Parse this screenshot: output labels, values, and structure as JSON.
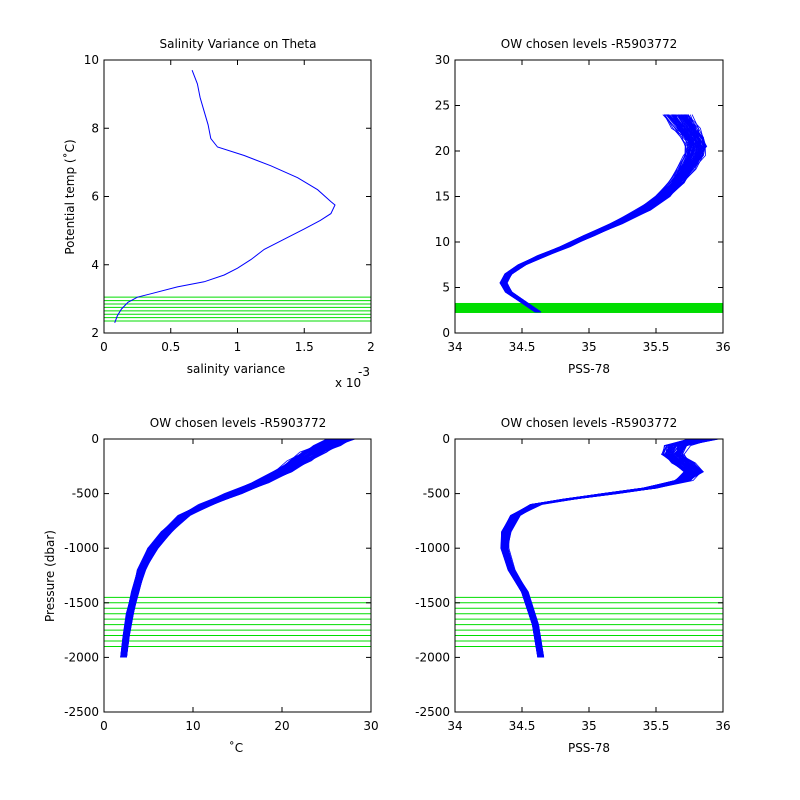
{
  "colors": {
    "profile": "#0000ff",
    "levels": "#00dd00",
    "axes": "#000000",
    "background": "#ffffff"
  },
  "chart_data": [
    {
      "type": "line",
      "title": "Salinity Variance on Theta",
      "xlabel": "salinity variance",
      "ylabel": "Potential temp (˚C)",
      "x_exponent_label": "x 10",
      "x_exponent_power": "-3",
      "xlim": [
        0,
        2
      ],
      "ylim": [
        2,
        10
      ],
      "xticks": [
        "0",
        "0.5",
        "1",
        "1.5",
        "2"
      ],
      "yticks": [
        "2",
        "4",
        "6",
        "8",
        "10"
      ],
      "series": [
        {
          "x": [
            0.08,
            0.1,
            0.13,
            0.18,
            0.25,
            0.35,
            0.55,
            0.75,
            0.9,
            1.0,
            1.1,
            1.2,
            1.35,
            1.5,
            1.62,
            1.7,
            1.73,
            1.7,
            1.6,
            1.45,
            1.25,
            1.05,
            0.85,
            0.8,
            0.78,
            0.75,
            0.72,
            0.7,
            0.66
          ],
          "y": [
            2.3,
            2.5,
            2.7,
            2.9,
            3.05,
            3.15,
            3.35,
            3.5,
            3.7,
            3.9,
            4.15,
            4.45,
            4.75,
            5.05,
            5.3,
            5.5,
            5.75,
            5.85,
            6.2,
            6.55,
            6.9,
            7.2,
            7.45,
            7.7,
            8.1,
            8.5,
            8.9,
            9.3,
            9.7
          ]
        }
      ],
      "hlines": [
        2.35,
        2.45,
        2.55,
        2.65,
        2.75,
        2.85,
        2.95,
        3.05
      ]
    },
    {
      "type": "line",
      "title": "OW chosen levels -R5903772",
      "xlabel": "PSS-78",
      "ylabel": "",
      "xlim": [
        34,
        36
      ],
      "ylim": [
        0,
        30
      ],
      "xticks": [
        "34",
        "34.5",
        "35",
        "35.5",
        "36"
      ],
      "yticks": [
        "0",
        "5",
        "10",
        "15",
        "20",
        "25",
        "30"
      ],
      "mean_profile": {
        "x": [
          34.62,
          34.5,
          34.4,
          34.36,
          34.4,
          34.5,
          34.65,
          34.82,
          35.0,
          35.2,
          35.4,
          35.55,
          35.65,
          35.72,
          35.78,
          35.8,
          35.77,
          35.72,
          35.65
        ],
        "y": [
          2.3,
          3.5,
          4.5,
          5.5,
          6.5,
          7.5,
          8.5,
          9.5,
          10.7,
          12.0,
          13.5,
          15.0,
          16.5,
          18.0,
          19.5,
          20.5,
          21.5,
          22.5,
          24.0
        ]
      },
      "profile_count": 80,
      "level_band": [
        2.2,
        3.3
      ]
    },
    {
      "type": "line",
      "title": "OW chosen levels -R5903772",
      "xlabel": "˚C",
      "ylabel": "Pressure (dbar)",
      "xlim": [
        0,
        30
      ],
      "ylim": [
        -2500,
        0
      ],
      "xticks": [
        "0",
        "10",
        "20",
        "30"
      ],
      "yticks": [
        "-2500",
        "-2000",
        "-1500",
        "-1000",
        "-500",
        "0"
      ],
      "mean_profile": {
        "x": [
          2.2,
          2.5,
          2.9,
          3.5,
          4.2,
          5.5,
          7.0,
          9.0,
          11.5,
          14.5,
          17.5,
          20.0,
          22.0,
          23.5,
          25.0,
          26.5
        ],
        "y": [
          -2000,
          -1800,
          -1600,
          -1400,
          -1200,
          -1000,
          -850,
          -700,
          -600,
          -500,
          -400,
          -300,
          -200,
          -120,
          -60,
          0
        ]
      },
      "profile_count": 80,
      "hlines": [
        -1450,
        -1500,
        -1550,
        -1600,
        -1650,
        -1700,
        -1750,
        -1800,
        -1850,
        -1900
      ]
    },
    {
      "type": "line",
      "title": "OW chosen levels -R5903772",
      "xlabel": "PSS-78",
      "ylabel": "",
      "xlim": [
        34,
        36
      ],
      "ylim": [
        -2500,
        0
      ],
      "xticks": [
        "34",
        "34.5",
        "35",
        "35.5",
        "36"
      ],
      "yticks": [
        "-2500",
        "-2000",
        "-1500",
        "-1000",
        "-500",
        "0"
      ],
      "mean_profile": {
        "x": [
          34.64,
          34.6,
          34.52,
          34.42,
          34.37,
          34.38,
          34.45,
          34.6,
          34.85,
          35.15,
          35.45,
          35.7,
          35.78,
          35.7,
          35.62,
          35.65,
          35.85
        ],
        "y": [
          -2000,
          -1700,
          -1400,
          -1200,
          -1000,
          -850,
          -700,
          -600,
          -550,
          -500,
          -450,
          -380,
          -300,
          -220,
          -140,
          -60,
          0
        ]
      },
      "profile_count": 80,
      "hlines": [
        -1450,
        -1500,
        -1550,
        -1600,
        -1650,
        -1700,
        -1750,
        -1800,
        -1850,
        -1900
      ]
    }
  ]
}
